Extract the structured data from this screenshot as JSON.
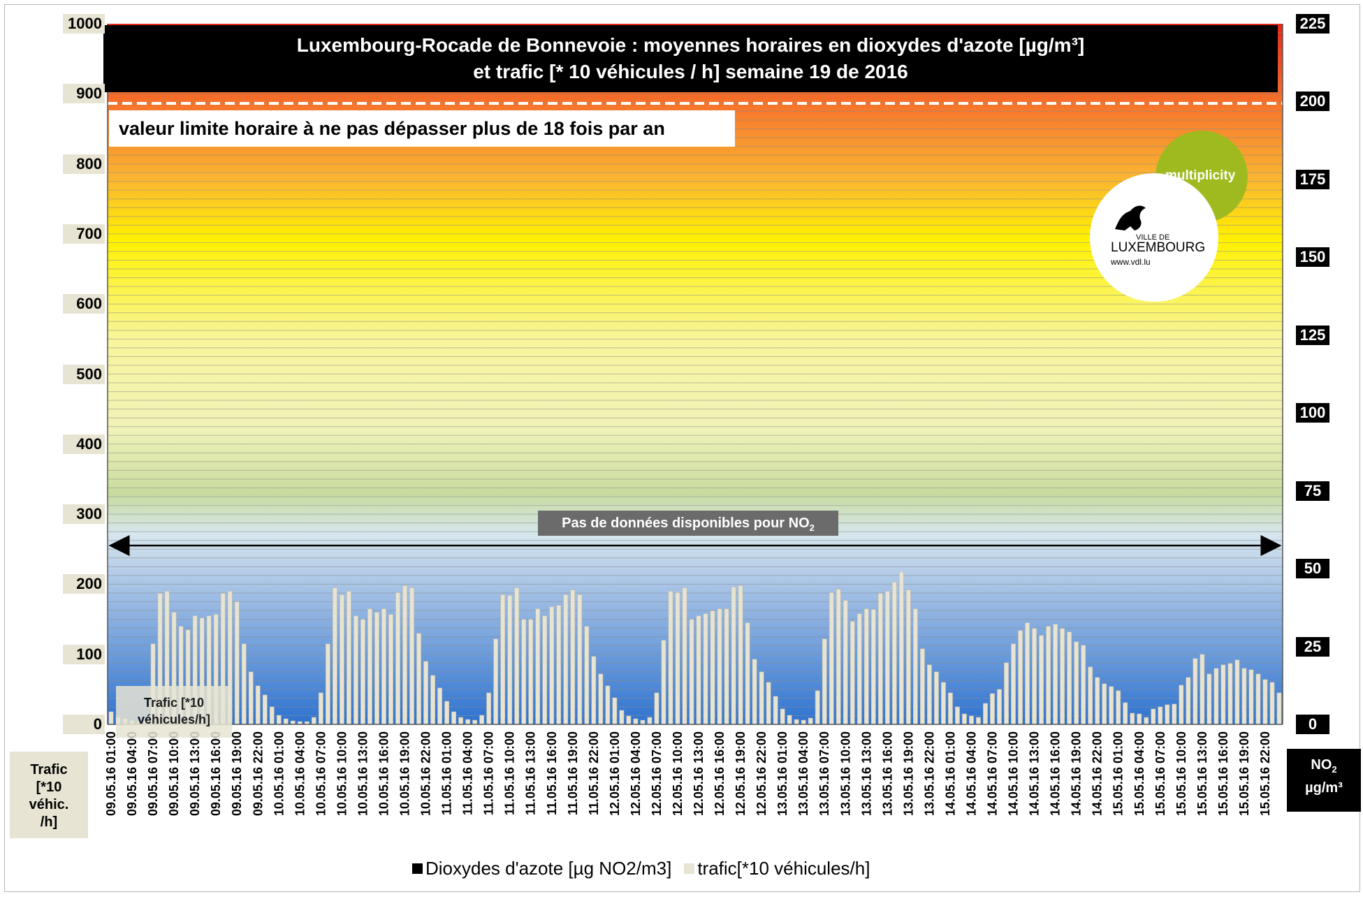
{
  "title_line1": "Luxembourg-Rocade de Bonnevoie : moyennes horaires en dioxydes d'azote [µg/m³]",
  "title_line2": "et trafic [* 10 véhicules / h]  semaine 19 de 2016",
  "limit_text": "valeur limite horaire à ne pas dépasser plus de 18 fois par an",
  "no_data_text": "Pas de données disponibles pour NO",
  "no_data_sub": "2",
  "trafic_label_line1": "Trafic [*10",
  "trafic_label_line2": "véhicules/h]",
  "left_axis_title": [
    "Trafic",
    "[*10",
    "véhic.",
    "/h]"
  ],
  "right_axis_title_main": "NO",
  "right_axis_title_sub": "2",
  "right_axis_title_unit": "µg/m³",
  "legend": {
    "no2": "Dioxydes d'azote [µg NO2/m3]",
    "trafic": "trafic[*10 véhicules/h]",
    "no2_color": "#000000",
    "trafic_color": "#e7e4d3"
  },
  "logo": {
    "multiplicity": "multiplicity",
    "ville_de": "VILLE DE",
    "luxembourg": "LUXEMBOURG",
    "url": "www.vdl.lu"
  },
  "chart_data": {
    "type": "bar",
    "title": "Luxembourg-Rocade de Bonnevoie : moyennes horaires en dioxydes d'azote [µg/m³] et trafic [* 10 véhicules / h]  semaine 19 de 2016",
    "ylim_left": [
      0,
      1000
    ],
    "left_ticks": [
      "0",
      "100",
      "200",
      "300",
      "400",
      "500",
      "600",
      "700",
      "800",
      "900",
      "1000"
    ],
    "ylim_right": [
      0,
      225
    ],
    "right_ticks": [
      "0",
      "25",
      "50",
      "75",
      "100",
      "125",
      "150",
      "175",
      "200",
      "225"
    ],
    "limit_value_no2": 200,
    "x_tick_labels": [
      "09.05.16 01:00",
      "09.05.16 04:00",
      "09.05.16 07:00",
      "09.05.16 10:00",
      "09.05.16 13:00",
      "09.05.16 16:00",
      "09.05.16 19:00",
      "09.05.16 22:00",
      "10.05.16 01:00",
      "10.05.16 04:00",
      "10.05.16 07:00",
      "10.05.16 10:00",
      "10.05.16 13:00",
      "10.05.16 16:00",
      "10.05.16 19:00",
      "10.05.16 22:00",
      "11.05.16 01:00",
      "11.05.16 04:00",
      "11.05.16 07:00",
      "11.05.16 10:00",
      "11.05.16 13:00",
      "11.05.16 16:00",
      "11.05.16 19:00",
      "11.05.16 22:00",
      "12.05.16 01:00",
      "12.05.16 04:00",
      "12.05.16 07:00",
      "12.05.16 10:00",
      "12.05.16 13:00",
      "12.05.16 16:00",
      "12.05.16 19:00",
      "12.05.16 22:00",
      "13.05.16 01:00",
      "13.05.16 04:00",
      "13.05.16 07:00",
      "13.05.16 10:00",
      "13.05.16 13:00",
      "13.05.16 16:00",
      "13.05.16 19:00",
      "13.05.16 22:00",
      "14.05.16 01:00",
      "14.05.16 04:00",
      "14.05.16 07:00",
      "14.05.16 10:00",
      "14.05.16 13:00",
      "14.05.16 16:00",
      "14.05.16 19:00",
      "14.05.16 22:00",
      "15.05.16 01:00",
      "15.05.16 04:00",
      "15.05.16 07:00",
      "15.05.16 10:00",
      "15.05.16 13:00",
      "15.05.16 16:00",
      "15.05.16 19:00",
      "15.05.16 22:00"
    ],
    "series": [
      {
        "name": "trafic[*10 véhicules/h]",
        "axis": "left",
        "values": [
          18,
          10,
          8,
          5,
          4,
          5,
          115,
          187,
          190,
          160,
          140,
          135,
          155,
          152,
          155,
          157,
          187,
          190,
          175,
          115,
          75,
          55,
          42,
          25,
          13,
          8,
          5,
          4,
          4,
          10,
          45,
          115,
          195,
          185,
          190,
          155,
          150,
          165,
          160,
          165,
          157,
          188,
          198,
          195,
          130,
          90,
          70,
          52,
          33,
          18,
          10,
          7,
          6,
          13,
          45,
          122,
          185,
          184,
          195,
          150,
          150,
          165,
          155,
          168,
          170,
          185,
          192,
          185,
          140,
          97,
          72,
          55,
          38,
          20,
          12,
          8,
          6,
          10,
          45,
          120,
          190,
          188,
          195,
          150,
          155,
          158,
          162,
          165,
          165,
          196,
          198,
          145,
          93,
          75,
          60,
          40,
          22,
          13,
          7,
          6,
          9,
          48,
          122,
          188,
          193,
          177,
          147,
          158,
          165,
          164,
          187,
          190,
          203,
          218,
          192,
          165,
          108,
          85,
          75,
          60,
          45,
          25,
          15,
          12,
          10,
          30,
          44,
          50,
          88,
          115,
          134,
          145,
          137,
          127,
          140,
          143,
          137,
          132,
          118,
          113,
          82,
          67,
          58,
          54,
          48,
          31,
          16,
          15,
          10,
          22,
          25,
          28,
          29,
          56,
          67,
          94,
          100,
          72,
          80,
          85,
          87,
          92,
          80,
          78,
          72,
          64,
          60,
          45
        ]
      },
      {
        "name": "Dioxydes d'azote [µg NO2/m3]",
        "axis": "right",
        "values": []
      }
    ]
  }
}
